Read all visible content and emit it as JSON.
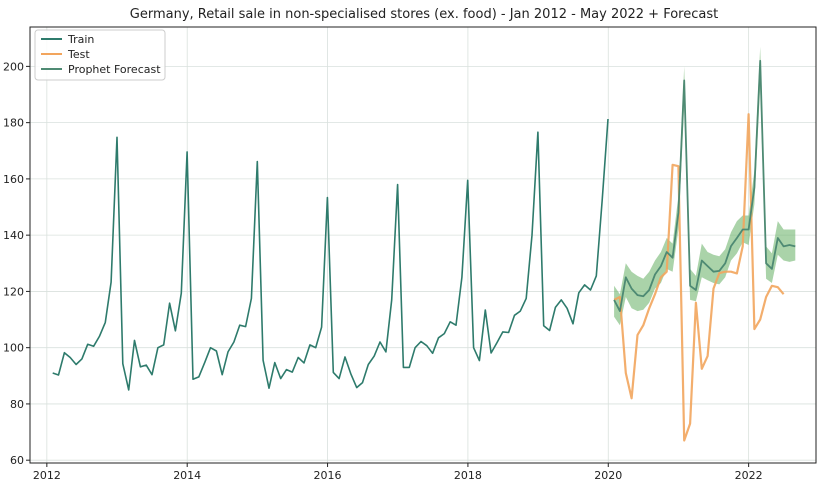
{
  "chart_data": {
    "type": "line",
    "title": "Germany, Retail sale in non-specialised stores (ex. food) - Jan 2012 - May 2022 + Forecast",
    "xlabel": "",
    "ylabel": "",
    "xlim": [
      2011.76,
      2022.96
    ],
    "ylim": [
      59,
      214
    ],
    "x_ticks": [
      2012,
      2014,
      2016,
      2018,
      2020,
      2022
    ],
    "y_ticks": [
      60,
      80,
      100,
      120,
      140,
      160,
      180,
      200
    ],
    "grid": true,
    "legend_position": "top-left",
    "colors": {
      "train": "#2e7b6c",
      "test": "#f2a55d",
      "forecast": "#4e8a73",
      "forecast_band": "#72b56f",
      "grid": "#d9e1dd",
      "axis": "#222222"
    },
    "series": [
      {
        "name": "Train",
        "start": 2012.083,
        "step": 0.0833,
        "values": [
          91,
          90.3,
          98.2,
          96.5,
          94,
          96,
          101.2,
          100.5,
          104,
          109,
          123.3,
          174.8,
          94.3,
          85,
          102.6,
          93.2,
          93.8,
          90.4,
          100,
          101,
          115.8,
          106,
          119.4,
          169.6,
          88.8,
          89.6,
          94.7,
          100,
          98.8,
          90.4,
          98.5,
          102,
          108,
          107.5,
          117.5,
          166.2,
          95.5,
          85.6,
          94.7,
          89,
          92.2,
          91.3,
          96.5,
          94.6,
          101,
          100,
          107.3,
          153.4,
          91.2,
          89,
          96.7,
          90.7,
          85.8,
          87.6,
          94,
          97,
          102,
          98.5,
          117,
          158,
          93,
          93,
          100,
          102.2,
          100.7,
          98,
          103.5,
          105,
          109.2,
          108,
          125,
          159.5,
          100,
          95.4,
          113.4,
          98.1,
          101.8,
          105.6,
          105.4,
          111.5,
          113,
          117.5,
          140,
          176.6,
          107.8,
          106.1,
          114.3,
          117,
          114,
          108.5,
          119.5,
          122.3,
          120.5,
          125.5,
          152.5,
          181.3
        ]
      },
      {
        "name": "Test",
        "start": 2020.083,
        "step": 0.0833,
        "values": [
          117,
          118,
          91,
          82,
          104.5,
          108,
          114,
          119,
          125,
          127,
          165,
          164.5,
          67,
          73,
          116,
          92.5,
          97,
          121,
          126.5,
          127,
          127,
          126.4,
          136,
          183,
          106.6,
          110,
          118,
          122,
          121.5,
          119
        ]
      },
      {
        "name": "Prophet Forecast",
        "start": 2020.083,
        "step": 0.0833,
        "values": [
          117,
          113,
          125,
          121,
          118.7,
          118.3,
          120.5,
          126,
          129,
          134,
          132,
          148,
          195,
          122,
          120.5,
          131,
          129,
          127,
          127.3,
          130,
          136.1,
          139,
          142,
          142,
          157,
          202,
          130,
          128,
          139,
          136,
          136.5,
          136
        ],
        "lower": [
          111,
          108,
          118,
          114,
          113,
          113.5,
          116,
          121,
          123,
          128,
          127,
          142,
          186,
          117,
          116.5,
          125,
          124,
          123,
          122.5,
          125,
          131,
          133.5,
          137.5,
          136.5,
          151,
          193,
          124.5,
          123,
          133,
          131,
          130.5,
          131
        ],
        "upper": [
          122,
          119,
          130,
          127,
          125.5,
          124.5,
          127,
          131,
          134,
          139,
          137,
          154,
          200,
          128,
          125.5,
          137,
          134,
          133,
          132.5,
          135,
          141,
          145,
          147,
          147,
          163,
          207,
          136,
          133.5,
          145,
          142,
          142,
          142
        ]
      }
    ]
  }
}
